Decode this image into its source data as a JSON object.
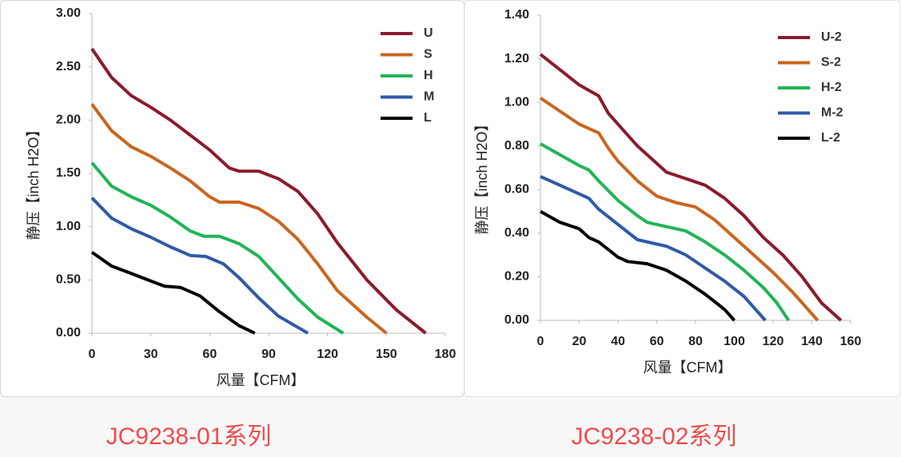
{
  "chart_data": [
    {
      "type": "line",
      "caption": "JC9238-01系列",
      "x_label": "风量【CFM】",
      "y_label": "静压【inch H2O】",
      "xlim": [
        0,
        180
      ],
      "xticks": [
        0,
        30,
        60,
        90,
        120,
        150,
        180
      ],
      "ylim": [
        0,
        3
      ],
      "yticks": [
        {
          "value": 0,
          "label": "0.00"
        },
        {
          "value": 0.5,
          "label": "0.50"
        },
        {
          "value": 1,
          "label": "1.00"
        },
        {
          "value": 1.5,
          "label": "1.50"
        },
        {
          "value": 2,
          "label": "2.00"
        },
        {
          "value": 2.5,
          "label": "2.50"
        },
        {
          "value": 3,
          "label": "3.00"
        }
      ],
      "legend": "top-right",
      "series": [
        {
          "name": "U",
          "color": "#8b1a2e",
          "x": [
            0,
            10,
            20,
            30,
            40,
            50,
            60,
            70,
            75,
            85,
            95,
            105,
            115,
            125,
            140,
            155,
            170
          ],
          "values": [
            2.67,
            2.4,
            2.23,
            2.12,
            2.0,
            1.86,
            1.72,
            1.55,
            1.52,
            1.52,
            1.45,
            1.33,
            1.12,
            0.85,
            0.5,
            0.22,
            0.0
          ]
        },
        {
          "name": "S",
          "color": "#c8661f",
          "x": [
            0,
            10,
            20,
            30,
            40,
            50,
            60,
            65,
            75,
            85,
            95,
            105,
            115,
            125,
            140,
            150
          ],
          "values": [
            2.15,
            1.9,
            1.75,
            1.66,
            1.55,
            1.43,
            1.28,
            1.23,
            1.23,
            1.17,
            1.05,
            0.88,
            0.65,
            0.4,
            0.15,
            0.0
          ]
        },
        {
          "name": "H",
          "color": "#1fb556",
          "x": [
            0,
            10,
            20,
            30,
            40,
            50,
            57,
            65,
            75,
            85,
            95,
            105,
            115,
            128
          ],
          "values": [
            1.6,
            1.38,
            1.28,
            1.2,
            1.09,
            0.96,
            0.91,
            0.91,
            0.84,
            0.72,
            0.52,
            0.32,
            0.15,
            0.0
          ]
        },
        {
          "name": "M",
          "color": "#2f5aa6",
          "x": [
            0,
            10,
            20,
            30,
            40,
            50,
            58,
            67,
            75,
            85,
            95,
            110
          ],
          "values": [
            1.27,
            1.08,
            0.98,
            0.9,
            0.81,
            0.73,
            0.72,
            0.65,
            0.52,
            0.33,
            0.16,
            0.0
          ]
        },
        {
          "name": "L",
          "color": "#000000",
          "x": [
            0,
            10,
            20,
            30,
            37,
            45,
            55,
            65,
            75,
            83
          ],
          "values": [
            0.76,
            0.63,
            0.56,
            0.49,
            0.44,
            0.43,
            0.35,
            0.2,
            0.07,
            0.0
          ]
        }
      ]
    },
    {
      "type": "line",
      "caption": "JC9238-02系列",
      "x_label": "风量【CFM】",
      "y_label": "静压【inch H2O】",
      "xlim": [
        0,
        160
      ],
      "xticks": [
        0,
        20,
        40,
        60,
        80,
        100,
        120,
        140,
        160
      ],
      "ylim": [
        0,
        1.4
      ],
      "yticks": [
        {
          "value": 0,
          "label": "0.00"
        },
        {
          "value": 0.2,
          "label": "0.20"
        },
        {
          "value": 0.4,
          "label": "0.40"
        },
        {
          "value": 0.6,
          "label": "0.60"
        },
        {
          "value": 0.8,
          "label": "0.80"
        },
        {
          "value": 1,
          "label": "1.00"
        },
        {
          "value": 1.2,
          "label": "1.20"
        },
        {
          "value": 1.4,
          "label": "1.40"
        }
      ],
      "legend": "top-right",
      "series": [
        {
          "name": "U-2",
          "color": "#8b1a2e",
          "x": [
            0,
            10,
            20,
            30,
            35,
            40,
            50,
            60,
            65,
            75,
            85,
            95,
            105,
            115,
            125,
            135,
            145,
            155
          ],
          "values": [
            1.22,
            1.15,
            1.08,
            1.03,
            0.95,
            0.9,
            0.8,
            0.72,
            0.68,
            0.65,
            0.62,
            0.56,
            0.48,
            0.38,
            0.3,
            0.2,
            0.08,
            0.0
          ]
        },
        {
          "name": "S-2",
          "color": "#c8661f",
          "x": [
            0,
            10,
            20,
            30,
            35,
            40,
            50,
            60,
            70,
            80,
            90,
            100,
            110,
            120,
            130,
            143
          ],
          "values": [
            1.02,
            0.96,
            0.9,
            0.86,
            0.79,
            0.73,
            0.64,
            0.57,
            0.54,
            0.52,
            0.46,
            0.38,
            0.3,
            0.22,
            0.13,
            0.0
          ]
        },
        {
          "name": "H-2",
          "color": "#1fb556",
          "x": [
            0,
            10,
            20,
            25,
            30,
            40,
            50,
            55,
            65,
            75,
            85,
            95,
            105,
            115,
            122,
            128
          ],
          "values": [
            0.81,
            0.76,
            0.71,
            0.69,
            0.64,
            0.55,
            0.48,
            0.45,
            0.43,
            0.41,
            0.36,
            0.3,
            0.23,
            0.15,
            0.08,
            0.0
          ]
        },
        {
          "name": "M-2",
          "color": "#2f5aa6",
          "x": [
            0,
            10,
            20,
            25,
            30,
            40,
            50,
            60,
            65,
            75,
            85,
            95,
            105,
            116
          ],
          "values": [
            0.66,
            0.62,
            0.58,
            0.56,
            0.51,
            0.44,
            0.37,
            0.35,
            0.34,
            0.3,
            0.24,
            0.18,
            0.11,
            0.0
          ]
        },
        {
          "name": "L-2",
          "color": "#000000",
          "x": [
            0,
            10,
            20,
            25,
            30,
            40,
            45,
            55,
            65,
            75,
            85,
            95,
            100
          ],
          "values": [
            0.5,
            0.45,
            0.42,
            0.38,
            0.36,
            0.29,
            0.27,
            0.26,
            0.23,
            0.18,
            0.12,
            0.05,
            0.0
          ]
        }
      ]
    }
  ]
}
